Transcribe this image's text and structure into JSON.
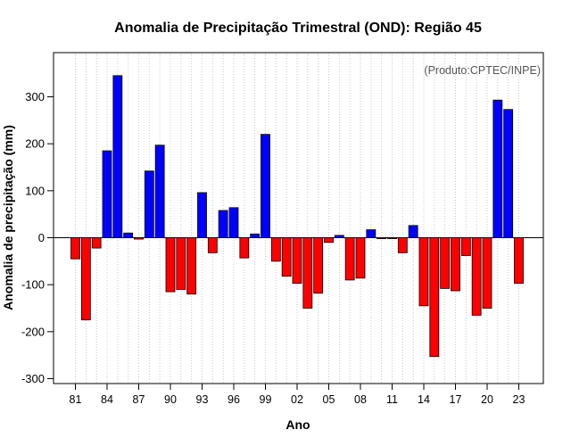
{
  "chart_data": {
    "type": "bar",
    "title": "Anomalia de Precipitação Trimestral (OND): Região 45",
    "xlabel": "Ano",
    "ylabel": "Anomalia de precipitação (mm)",
    "credit": "(Produto:CPTEC/INPE)",
    "ylim": [
      -300,
      400
    ],
    "yticks": [
      -300,
      -200,
      -100,
      0,
      100,
      200,
      300
    ],
    "xtick_years": [
      1981,
      1984,
      1987,
      1990,
      1993,
      1996,
      1999,
      2002,
      2005,
      2008,
      2011,
      2014,
      2017,
      2020,
      2023
    ],
    "xtick_labels": [
      "81",
      "84",
      "87",
      "90",
      "93",
      "96",
      "99",
      "02",
      "05",
      "08",
      "11",
      "14",
      "17",
      "20",
      "23"
    ],
    "positive_color": "#0000ff",
    "negative_color": "#ff0000",
    "grid": "vertical-dotted",
    "years": [
      1981,
      1982,
      1983,
      1984,
      1985,
      1986,
      1987,
      1988,
      1989,
      1990,
      1991,
      1992,
      1993,
      1994,
      1995,
      1996,
      1997,
      1998,
      1999,
      2000,
      2001,
      2002,
      2003,
      2004,
      2005,
      2006,
      2007,
      2008,
      2009,
      2010,
      2011,
      2012,
      2013,
      2014,
      2015,
      2016,
      2017,
      2018,
      2019,
      2020,
      2021,
      2022,
      2023
    ],
    "values": [
      -45,
      -175,
      -22,
      185,
      345,
      10,
      -3,
      142,
      197,
      -115,
      -110,
      -120,
      96,
      -32,
      58,
      64,
      -43,
      8,
      220,
      -50,
      -82,
      -97,
      -150,
      -118,
      -10,
      5,
      -90,
      -86,
      17,
      -2,
      -2,
      -32,
      26,
      -145,
      -253,
      -108,
      -113,
      -38,
      -165,
      -150,
      293,
      273,
      -97
    ]
  }
}
